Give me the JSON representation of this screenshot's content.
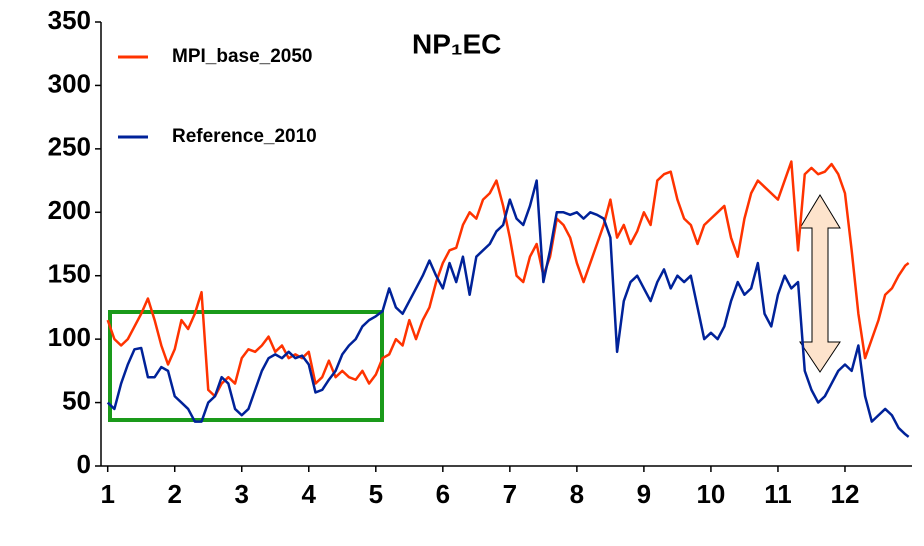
{
  "chart_data": {
    "type": "line",
    "title": "NP₁EC",
    "x": [
      1.0,
      1.1,
      1.2,
      1.3,
      1.4,
      1.5,
      1.6,
      1.7,
      1.8,
      1.9,
      2.0,
      2.1,
      2.2,
      2.3,
      2.4,
      2.5,
      2.6,
      2.7,
      2.8,
      2.9,
      3.0,
      3.1,
      3.2,
      3.3,
      3.4,
      3.5,
      3.6,
      3.7,
      3.8,
      3.9,
      4.0,
      4.1,
      4.2,
      4.3,
      4.4,
      4.5,
      4.6,
      4.7,
      4.8,
      4.9,
      5.0,
      5.1,
      5.2,
      5.3,
      5.4,
      5.5,
      5.6,
      5.7,
      5.8,
      5.9,
      6.0,
      6.1,
      6.2,
      6.3,
      6.4,
      6.5,
      6.6,
      6.7,
      6.8,
      6.9,
      7.0,
      7.1,
      7.2,
      7.3,
      7.4,
      7.5,
      7.6,
      7.7,
      7.8,
      7.9,
      8.0,
      8.1,
      8.2,
      8.3,
      8.4,
      8.5,
      8.6,
      8.7,
      8.8,
      8.9,
      9.0,
      9.1,
      9.2,
      9.3,
      9.4,
      9.5,
      9.6,
      9.7,
      9.8,
      9.9,
      10.0,
      10.1,
      10.2,
      10.3,
      10.4,
      10.5,
      10.6,
      10.7,
      10.8,
      10.9,
      11.0,
      11.1,
      11.2,
      11.3,
      11.4,
      11.5,
      11.6,
      11.7,
      11.8,
      11.9,
      12.0,
      12.1,
      12.2,
      12.3,
      12.4,
      12.5,
      12.6,
      12.7,
      12.8,
      12.9,
      12.95
    ],
    "series": [
      {
        "name": "MPI_base_2050",
        "color": "#ff3300",
        "values": [
          115,
          100,
          95,
          100,
          110,
          120,
          132,
          115,
          95,
          80,
          92,
          115,
          108,
          120,
          137,
          60,
          55,
          65,
          70,
          65,
          85,
          92,
          90,
          95,
          102,
          90,
          95,
          85,
          88,
          85,
          90,
          65,
          70,
          83,
          70,
          75,
          70,
          68,
          75,
          65,
          72,
          85,
          88,
          100,
          95,
          115,
          100,
          115,
          125,
          145,
          160,
          170,
          172,
          190,
          200,
          195,
          210,
          215,
          225,
          205,
          180,
          150,
          145,
          165,
          175,
          150,
          165,
          195,
          190,
          180,
          160,
          145,
          160,
          175,
          190,
          210,
          180,
          190,
          175,
          185,
          200,
          190,
          225,
          230,
          232,
          210,
          195,
          190,
          175,
          190,
          195,
          200,
          205,
          180,
          165,
          195,
          215,
          225,
          220,
          215,
          210,
          225,
          240,
          170,
          230,
          235,
          230,
          232,
          238,
          230,
          215,
          170,
          120,
          85,
          100,
          115,
          135,
          140,
          150,
          158,
          160
        ]
      },
      {
        "name": "Reference_2010",
        "color": "#002299",
        "values": [
          50,
          45,
          65,
          80,
          92,
          93,
          70,
          70,
          78,
          75,
          55,
          50,
          45,
          35,
          35,
          50,
          55,
          70,
          65,
          45,
          40,
          45,
          60,
          75,
          85,
          88,
          85,
          90,
          85,
          87,
          80,
          58,
          60,
          68,
          75,
          88,
          95,
          100,
          110,
          115,
          118,
          122,
          140,
          125,
          120,
          130,
          140,
          150,
          162,
          150,
          140,
          160,
          145,
          165,
          135,
          165,
          170,
          175,
          185,
          190,
          210,
          195,
          190,
          205,
          225,
          145,
          170,
          200,
          200,
          198,
          200,
          195,
          200,
          198,
          195,
          180,
          90,
          130,
          145,
          150,
          140,
          130,
          145,
          155,
          140,
          150,
          145,
          150,
          125,
          100,
          105,
          100,
          110,
          130,
          145,
          135,
          140,
          160,
          120,
          110,
          135,
          150,
          140,
          145,
          75,
          60,
          50,
          55,
          65,
          75,
          80,
          75,
          95,
          55,
          35,
          40,
          45,
          40,
          30,
          25,
          23
        ]
      }
    ],
    "xlim": [
      0.9,
      13
    ],
    "xticks": [
      1,
      2,
      3,
      4,
      5,
      6,
      7,
      8,
      9,
      10,
      11,
      12
    ],
    "ylim": [
      0,
      350
    ],
    "yticks": [
      0,
      50,
      100,
      150,
      200,
      250,
      300,
      350
    ],
    "legend": "upper left"
  }
}
